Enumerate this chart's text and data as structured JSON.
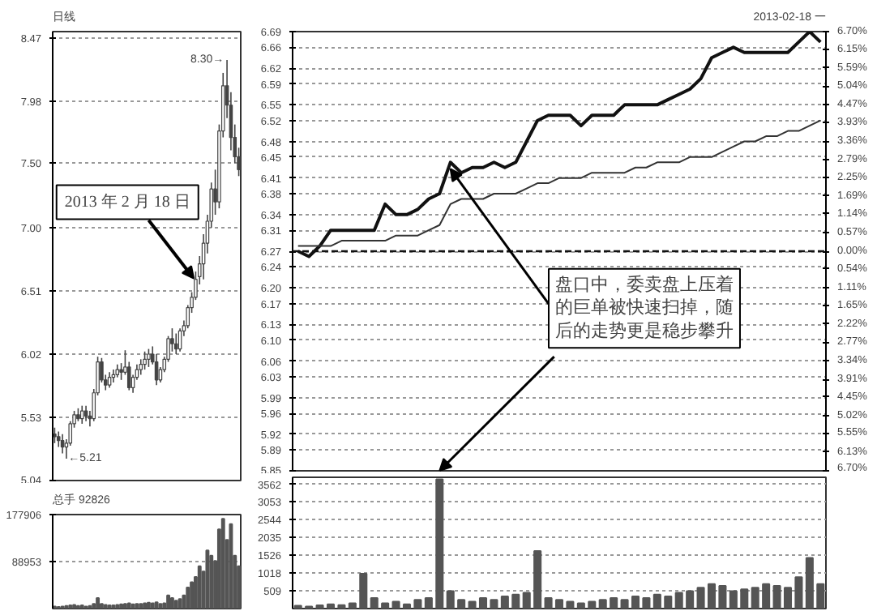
{
  "chart_data": [
    {
      "type": "candlestick",
      "title": "日线",
      "categories": [
        null,
        null,
        null,
        null,
        null,
        null,
        null,
        null,
        null,
        null,
        null,
        null,
        null,
        null,
        null,
        null,
        null,
        null,
        null,
        null,
        null,
        null,
        null,
        null,
        null,
        null,
        null,
        null,
        null,
        null,
        null,
        null,
        null,
        null,
        null,
        null,
        null,
        null,
        null,
        null,
        null,
        null,
        null,
        null,
        null,
        null,
        null,
        null
      ],
      "ohlc": [
        [
          5.4,
          5.45,
          5.33,
          5.38
        ],
        [
          5.38,
          5.42,
          5.3,
          5.35
        ],
        [
          5.35,
          5.4,
          5.25,
          5.3
        ],
        [
          5.3,
          5.36,
          5.21,
          5.33
        ],
        [
          5.33,
          5.5,
          5.31,
          5.48
        ],
        [
          5.48,
          5.58,
          5.45,
          5.55
        ],
        [
          5.55,
          5.6,
          5.5,
          5.52
        ],
        [
          5.52,
          5.62,
          5.48,
          5.58
        ],
        [
          5.58,
          5.62,
          5.5,
          5.54
        ],
        [
          5.54,
          5.58,
          5.46,
          5.52
        ],
        [
          5.52,
          5.75,
          5.5,
          5.72
        ],
        [
          5.72,
          6.0,
          5.7,
          5.96
        ],
        [
          5.96,
          5.99,
          5.8,
          5.82
        ],
        [
          5.82,
          5.86,
          5.74,
          5.78
        ],
        [
          5.78,
          5.88,
          5.76,
          5.84
        ],
        [
          5.84,
          5.9,
          5.8,
          5.86
        ],
        [
          5.86,
          5.94,
          5.84,
          5.9
        ],
        [
          5.9,
          5.95,
          5.82,
          5.88
        ],
        [
          5.88,
          6.05,
          5.86,
          5.92
        ],
        [
          5.92,
          5.96,
          5.74,
          5.76
        ],
        [
          5.76,
          5.86,
          5.72,
          5.84
        ],
        [
          5.84,
          5.94,
          5.82,
          5.9
        ],
        [
          5.9,
          5.98,
          5.86,
          5.94
        ],
        [
          5.94,
          6.04,
          5.9,
          5.98
        ],
        [
          5.98,
          6.06,
          5.92,
          6.02
        ],
        [
          6.02,
          6.08,
          5.94,
          5.96
        ],
        [
          5.96,
          6.02,
          5.78,
          5.82
        ],
        [
          5.82,
          5.92,
          5.8,
          5.9
        ],
        [
          5.9,
          6.0,
          5.88,
          5.98
        ],
        [
          5.98,
          6.16,
          5.96,
          6.14
        ],
        [
          6.14,
          6.22,
          6.04,
          6.1
        ],
        [
          6.1,
          6.18,
          6.02,
          6.06
        ],
        [
          6.06,
          6.22,
          6.04,
          6.2
        ],
        [
          6.2,
          6.28,
          6.16,
          6.24
        ],
        [
          6.24,
          6.4,
          6.22,
          6.38
        ],
        [
          6.38,
          6.5,
          6.34,
          6.46
        ],
        [
          6.46,
          6.66,
          6.44,
          6.6
        ],
        [
          6.62,
          6.78,
          6.56,
          6.72
        ],
        [
          6.72,
          6.95,
          6.6,
          6.88
        ],
        [
          6.88,
          7.1,
          6.8,
          7.05
        ],
        [
          7.05,
          7.35,
          7.0,
          7.3
        ],
        [
          7.3,
          7.45,
          7.1,
          7.2
        ],
        [
          7.2,
          7.8,
          7.15,
          7.75
        ],
        [
          7.75,
          8.2,
          7.7,
          8.1
        ],
        [
          8.1,
          8.3,
          7.85,
          7.95
        ],
        [
          7.95,
          8.05,
          7.6,
          7.7
        ],
        [
          7.7,
          7.8,
          7.5,
          7.55
        ],
        [
          7.55,
          7.62,
          7.4,
          7.45
        ]
      ],
      "color": "#444444",
      "ylim": [
        5.04,
        8.52
      ],
      "yticks": [
        5.04,
        5.53,
        6.02,
        6.51,
        {
          "value": 7.0,
          "label": "7.00"
        },
        {
          "value": 7.5,
          "label": "7.50"
        },
        7.98,
        8.47
      ],
      "grid": "y",
      "annotations": [
        "8.30→",
        "←5.21",
        "2013 年 2 月 18 日"
      ]
    },
    {
      "type": "bar",
      "title": "总手 92826",
      "categories": [
        null,
        null,
        null,
        null,
        null,
        null,
        null,
        null,
        null,
        null,
        null,
        null,
        null,
        null,
        null,
        null,
        null,
        null,
        null,
        null,
        null,
        null,
        null,
        null,
        null,
        null,
        null,
        null,
        null,
        null,
        null,
        null,
        null,
        null,
        null,
        null,
        null,
        null,
        null,
        null,
        null,
        null,
        null,
        null,
        null,
        null,
        null,
        null
      ],
      "values": [
        4000,
        3000,
        4000,
        5000,
        6000,
        7000,
        5000,
        6000,
        4000,
        5000,
        9000,
        20000,
        9000,
        7000,
        6000,
        6000,
        7000,
        8000,
        9000,
        10000,
        8000,
        9000,
        9000,
        10000,
        11000,
        10000,
        12000,
        9000,
        10000,
        25000,
        20000,
        15000,
        18000,
        25000,
        40000,
        50000,
        60000,
        80000,
        70000,
        110000,
        100000,
        90000,
        150000,
        170000,
        130000,
        160000,
        100000,
        80000
      ],
      "color": "#555555",
      "ylim": [
        0,
        177906
      ],
      "yticks": [
        {
          "value": 88953,
          "label": "88953"
        },
        {
          "value": 177906,
          "label": "177906"
        }
      ],
      "grid": "y"
    },
    {
      "type": "line",
      "title": "2013-02-18 一",
      "categories": [
        null,
        null,
        null,
        null,
        null,
        null,
        null,
        null,
        null,
        null,
        null,
        null,
        null,
        null,
        null,
        null,
        null,
        null,
        null,
        null,
        null,
        null,
        null,
        null,
        null,
        null,
        null,
        null,
        null,
        null,
        null,
        null,
        null,
        null,
        null,
        null,
        null,
        null,
        null,
        null,
        null,
        null,
        null,
        null,
        null,
        null,
        null,
        null,
        null
      ],
      "series": [
        {
          "color": "#111111",
          "values": [
            6.27,
            6.26,
            6.28,
            6.31,
            6.31,
            6.31,
            6.31,
            6.31,
            6.36,
            6.34,
            6.34,
            6.35,
            6.37,
            6.38,
            6.44,
            6.42,
            6.43,
            6.43,
            6.44,
            6.43,
            6.44,
            6.48,
            6.52,
            6.53,
            6.53,
            6.53,
            6.51,
            6.53,
            6.53,
            6.53,
            6.55,
            6.55,
            6.55,
            6.55,
            6.56,
            6.57,
            6.58,
            6.6,
            6.64,
            6.65,
            6.66,
            6.65,
            6.65,
            6.65,
            6.65,
            6.65,
            6.67,
            6.69,
            6.67
          ]
        },
        {
          "color": "#333333",
          "values": [
            6.28,
            6.28,
            6.28,
            6.28,
            6.29,
            6.29,
            6.29,
            6.29,
            6.29,
            6.3,
            6.3,
            6.3,
            6.31,
            6.32,
            6.36,
            6.37,
            6.37,
            6.37,
            6.38,
            6.38,
            6.38,
            6.39,
            6.4,
            6.4,
            6.41,
            6.41,
            6.41,
            6.42,
            6.42,
            6.42,
            6.42,
            6.43,
            6.43,
            6.44,
            6.44,
            6.44,
            6.45,
            6.45,
            6.45,
            6.46,
            6.47,
            6.48,
            6.48,
            6.49,
            6.49,
            6.5,
            6.5,
            6.51,
            6.52
          ]
        }
      ],
      "ylim": [
        5.85,
        6.69
      ],
      "yticks": [
        5.85,
        5.89,
        5.92,
        5.96,
        5.99,
        6.03,
        6.06,
        {
          "value": 6.1,
          "label": "6.10"
        },
        6.13,
        6.17,
        {
          "value": 6.2,
          "label": "6.20"
        },
        6.24,
        6.27,
        6.31,
        6.34,
        6.38,
        6.41,
        6.45,
        6.48,
        6.52,
        6.55,
        6.59,
        6.62,
        6.66,
        6.69
      ],
      "y2lim": [
        -6.7,
        6.7
      ],
      "y2ticks": [
        {
          "value": -6.7,
          "label": "6.70%"
        },
        {
          "value": -6.13,
          "label": "6.13%"
        },
        {
          "value": -5.55,
          "label": "5.55%"
        },
        {
          "value": -5.02,
          "label": "5.02%"
        },
        {
          "value": -4.45,
          "label": "4.45%"
        },
        {
          "value": -3.91,
          "label": "3.91%"
        },
        {
          "value": -3.34,
          "label": "3.34%"
        },
        {
          "value": -2.77,
          "label": "2.77%"
        },
        {
          "value": -2.22,
          "label": "2.22%"
        },
        {
          "value": -1.65,
          "label": "1.65%"
        },
        {
          "value": -1.11,
          "label": "1.11%"
        },
        {
          "value": -0.54,
          "label": "0.54%"
        },
        {
          "value": 0,
          "label": "0.00%"
        },
        {
          "value": 0.57,
          "label": "0.57%"
        },
        {
          "value": 1.14,
          "label": "1.14%"
        },
        {
          "value": 1.69,
          "label": "1.69%"
        },
        {
          "value": 2.25,
          "label": "2.25%"
        },
        {
          "value": 2.79,
          "label": "2.79%"
        },
        {
          "value": 3.36,
          "label": "3.36%"
        },
        {
          "value": 3.93,
          "label": "3.93%"
        },
        {
          "value": 4.47,
          "label": "4.47%"
        },
        {
          "value": 5.04,
          "label": "5.04%"
        },
        {
          "value": 5.59,
          "label": "5.59%"
        },
        {
          "value": 6.15,
          "label": "6.15%"
        },
        {
          "value": 6.7,
          "label": "6.70%"
        }
      ],
      "grid": "y",
      "ref_lines": [
        {
          "axis": "y",
          "value": 6.27,
          "line_style": "dashed",
          "color": "#111111"
        }
      ],
      "annotations": [
        "盘口中，委卖盘上压着的巨单被快速扫掉，随后的走势更是稳步攀升"
      ]
    },
    {
      "type": "bar",
      "categories": [
        null,
        null,
        null,
        null,
        null,
        null,
        null,
        null,
        null,
        null,
        null,
        null,
        null,
        null,
        null,
        null,
        null,
        null,
        null,
        null,
        null,
        null,
        null,
        null,
        null,
        null,
        null,
        null,
        null,
        null,
        null,
        null,
        null,
        null,
        null,
        null,
        null,
        null,
        null,
        null,
        null,
        null,
        null,
        null,
        null,
        null,
        null,
        null,
        null
      ],
      "values": [
        80,
        60,
        90,
        120,
        100,
        150,
        1000,
        300,
        150,
        200,
        120,
        250,
        300,
        3700,
        500,
        250,
        200,
        300,
        250,
        350,
        400,
        450,
        1650,
        300,
        250,
        200,
        150,
        200,
        250,
        300,
        250,
        350,
        300,
        400,
        350,
        450,
        500,
        600,
        700,
        650,
        500,
        550,
        600,
        700,
        650,
        600,
        900,
        1450,
        700
      ],
      "color": "#555555",
      "ylim": [
        0,
        3760
      ],
      "yticks": [
        509,
        1018,
        1526,
        2035,
        2544,
        3053,
        3562
      ],
      "grid": "y"
    }
  ]
}
